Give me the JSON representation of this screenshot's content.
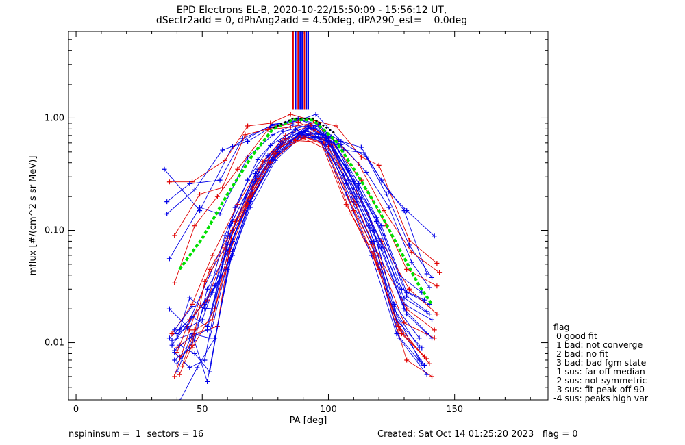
{
  "header": {
    "title_line1": "EPD Electrons EL-B, 2020-10-22/15:50:09 - 15:56:12 UT,",
    "title_line2": "dSectr2add = 0, dPhAng2add = 4.50deg, dPA290_est=    0.0deg"
  },
  "footer": {
    "left": "nspininsum =  1  sectors = 16",
    "right": "Created: Sat Oct 14 01:25:20 2023   flag = 0"
  },
  "flag_legend": {
    "title": "flag",
    "items": [
      " 0 good fit",
      " 1 bad: not converge",
      " 2 bad: no fit",
      " 3 bad: bad fgm state",
      "-1 sus: far off median",
      "-2 sus: not symmetric",
      "-3 sus: fit peak off 90",
      "-4 sus: peaks high var"
    ]
  },
  "colors": {
    "red": "#e00000",
    "blue": "#0000e8",
    "green": "#00e000",
    "black": "#000000"
  },
  "chart_data": {
    "type": "line",
    "xlabel": "PA [deg]",
    "ylabel": "mflux [#/(cm^2 s sr MeV)]",
    "xlim": [
      -3,
      187
    ],
    "ylim": [
      0.0031,
      5.9
    ],
    "ylog": true,
    "xticks": [
      0,
      50,
      100,
      150
    ],
    "xtick_labels": [
      "0",
      "50",
      "100",
      "150"
    ],
    "yticks": [
      0.01,
      0.1,
      1.0
    ],
    "ytick_labels": [
      "0.01",
      "0.10",
      "1.00"
    ],
    "grid": false,
    "vertical_lines_x": [
      86.0,
      87.0,
      88.0,
      88.8,
      89.6,
      90.5,
      91.3,
      92.0
    ],
    "vertical_lines_color": [
      "red",
      "blue",
      "red",
      "blue",
      "blue",
      "red",
      "blue",
      "blue"
    ],
    "vertical_lines_ymin": 1.2,
    "fit_curve_green": {
      "x": [
        41,
        50,
        60,
        70,
        78,
        86,
        94,
        103,
        112,
        120,
        129,
        136,
        141
      ],
      "y": [
        0.045,
        0.085,
        0.21,
        0.47,
        0.8,
        0.97,
        0.96,
        0.62,
        0.3,
        0.15,
        0.063,
        0.032,
        0.022
      ]
    },
    "fit_curve_black": {
      "x": [
        78,
        86,
        94,
        103
      ],
      "y": [
        0.82,
        0.99,
        0.99,
        0.72
      ]
    },
    "series": [
      {
        "color": "blue",
        "x": [
          35,
          49,
          62,
          78,
          88,
          95,
          105,
          113,
          121,
          130,
          139
        ],
        "y": [
          0.35,
          0.15,
          0.56,
          0.88,
          0.95,
          1.08,
          0.62,
          0.55,
          0.28,
          0.15,
          0.041
        ]
      },
      {
        "color": "red",
        "x": [
          37,
          46,
          59,
          68,
          77,
          85,
          94,
          103,
          113,
          120,
          132,
          143
        ],
        "y": [
          0.27,
          0.27,
          0.42,
          0.85,
          0.9,
          1.08,
          0.95,
          0.85,
          0.45,
          0.38,
          0.082,
          0.051
        ]
      },
      {
        "color": "blue",
        "x": [
          36,
          45,
          57,
          66,
          78,
          88,
          96,
          106,
          114,
          124,
          131,
          142
        ],
        "y": [
          0.18,
          0.26,
          0.28,
          0.66,
          0.86,
          0.98,
          0.88,
          0.52,
          0.49,
          0.22,
          0.15,
          0.089
        ]
      },
      {
        "color": "blue",
        "x": [
          36,
          47,
          58,
          68,
          77,
          89,
          95,
          104,
          115,
          123,
          132,
          141
        ],
        "y": [
          0.14,
          0.23,
          0.52,
          0.62,
          0.82,
          0.96,
          0.85,
          0.64,
          0.45,
          0.21,
          0.074,
          0.038
        ]
      },
      {
        "color": "red",
        "x": [
          39,
          49,
          58,
          67,
          79,
          88,
          94,
          103,
          112,
          122,
          133,
          144
        ],
        "y": [
          0.09,
          0.21,
          0.24,
          0.71,
          0.83,
          0.92,
          0.79,
          0.63,
          0.39,
          0.15,
          0.064,
          0.042
        ]
      },
      {
        "color": "blue",
        "x": [
          37,
          49,
          57,
          68,
          78,
          86,
          95,
          105,
          115,
          124,
          133,
          140
        ],
        "y": [
          0.056,
          0.16,
          0.14,
          0.45,
          0.71,
          0.87,
          0.8,
          0.58,
          0.33,
          0.16,
          0.052,
          0.031
        ]
      },
      {
        "color": "red",
        "x": [
          39,
          47,
          56,
          64,
          76,
          85,
          95,
          103,
          113,
          123,
          131,
          143
        ],
        "y": [
          0.034,
          0.11,
          0.2,
          0.35,
          0.79,
          0.83,
          0.91,
          0.55,
          0.28,
          0.11,
          0.045,
          0.032
        ]
      },
      {
        "color": "blue",
        "x": [
          37,
          44,
          55,
          63,
          72,
          82,
          93,
          101,
          112,
          121,
          131,
          140
        ],
        "y": [
          0.02,
          0.014,
          0.032,
          0.16,
          0.43,
          0.76,
          0.87,
          0.68,
          0.26,
          0.11,
          0.028,
          0.022
        ]
      },
      {
        "color": "blue",
        "x": [
          37,
          45,
          53,
          62,
          72,
          81,
          92,
          102,
          112,
          122,
          131,
          139
        ],
        "y": [
          0.011,
          0.016,
          0.04,
          0.12,
          0.35,
          0.62,
          0.81,
          0.61,
          0.24,
          0.09,
          0.026,
          0.019
        ]
      },
      {
        "color": "red",
        "x": [
          38,
          46,
          54,
          64,
          74,
          83,
          93,
          101,
          111,
          121,
          132,
          143
        ],
        "y": [
          0.012,
          0.022,
          0.06,
          0.17,
          0.41,
          0.7,
          0.86,
          0.57,
          0.22,
          0.08,
          0.03,
          0.018
        ]
      },
      {
        "color": "blue",
        "x": [
          38,
          46,
          53,
          62,
          72,
          83,
          94,
          103,
          113,
          122,
          130,
          141
        ],
        "y": [
          0.0105,
          0.012,
          0.011,
          0.08,
          0.3,
          0.66,
          0.83,
          0.58,
          0.19,
          0.07,
          0.022,
          0.016
        ]
      },
      {
        "color": "blue",
        "x": [
          39,
          46,
          54,
          61,
          70,
          80,
          90,
          100,
          110,
          120,
          130,
          140
        ],
        "y": [
          0.013,
          0.021,
          0.02,
          0.07,
          0.25,
          0.53,
          0.74,
          0.62,
          0.24,
          0.085,
          0.025,
          0.018
        ]
      },
      {
        "color": "red",
        "x": [
          40,
          47,
          56,
          62,
          72,
          82,
          92,
          100,
          110,
          120,
          131,
          142
        ],
        "y": [
          0.009,
          0.012,
          0.014,
          0.1,
          0.29,
          0.6,
          0.7,
          0.63,
          0.18,
          0.06,
          0.02,
          0.013
        ]
      },
      {
        "color": "blue",
        "x": [
          38,
          47,
          54,
          62,
          70,
          80,
          91,
          99,
          110,
          119,
          129,
          138
        ],
        "y": [
          0.0095,
          0.018,
          0.028,
          0.06,
          0.2,
          0.48,
          0.76,
          0.7,
          0.27,
          0.12,
          0.03,
          0.024
        ]
      },
      {
        "color": "blue",
        "x": [
          39,
          45,
          52,
          61,
          71,
          81,
          92,
          101,
          111,
          121,
          131,
          139
        ],
        "y": [
          0.0085,
          0.011,
          0.013,
          0.09,
          0.32,
          0.58,
          0.85,
          0.6,
          0.2,
          0.07,
          0.018,
          0.012
        ]
      },
      {
        "color": "red",
        "x": [
          41,
          46,
          55,
          63,
          73,
          83,
          93,
          101,
          111,
          121,
          130,
          142
        ],
        "y": [
          0.0075,
          0.009,
          0.02,
          0.12,
          0.36,
          0.65,
          0.72,
          0.58,
          0.17,
          0.05,
          0.015,
          0.011
        ]
      },
      {
        "color": "blue",
        "x": [
          39,
          45,
          51,
          60,
          69,
          79,
          90,
          100,
          109,
          119,
          128,
          137
        ],
        "y": [
          0.007,
          0.009,
          0.022,
          0.05,
          0.18,
          0.45,
          0.71,
          0.66,
          0.3,
          0.13,
          0.04,
          0.028
        ]
      },
      {
        "color": "blue",
        "x": [
          40,
          47,
          52,
          60,
          71,
          80,
          91,
          99,
          109,
          120,
          130,
          141
        ],
        "y": [
          0.0065,
          0.0105,
          0.03,
          0.065,
          0.27,
          0.5,
          0.78,
          0.63,
          0.22,
          0.075,
          0.02,
          0.011
        ]
      },
      {
        "color": "red",
        "x": [
          39,
          45,
          53,
          60,
          70,
          81,
          91,
          100,
          110,
          120,
          131,
          141
        ],
        "y": [
          0.005,
          0.013,
          0.045,
          0.085,
          0.24,
          0.56,
          0.67,
          0.56,
          0.15,
          0.045,
          0.007,
          0.005
        ]
      },
      {
        "color": "blue",
        "x": [
          40,
          46,
          52,
          61,
          70,
          79,
          89,
          98,
          108,
          118,
          127,
          136
        ],
        "y": [
          0.0055,
          0.012,
          0.0045,
          0.055,
          0.22,
          0.5,
          0.73,
          0.71,
          0.34,
          0.1,
          0.018,
          0.007
        ]
      },
      {
        "color": "blue",
        "x": [
          41,
          47,
          53,
          60,
          69,
          79,
          89,
          99,
          108,
          118,
          127,
          138
        ],
        "y": [
          0.0095,
          0.008,
          0.0055,
          0.045,
          0.16,
          0.42,
          0.68,
          0.67,
          0.28,
          0.08,
          0.015,
          0.0063
        ]
      },
      {
        "color": "red",
        "x": [
          41,
          46,
          51,
          59,
          70,
          79,
          90,
          99,
          109,
          119,
          129,
          138
        ],
        "y": [
          0.0052,
          0.0095,
          0.035,
          0.07,
          0.21,
          0.48,
          0.66,
          0.53,
          0.14,
          0.05,
          0.012,
          0.0075
        ]
      },
      {
        "color": "blue",
        "x": [
          39,
          45,
          51,
          61,
          71,
          80,
          90,
          99,
          109,
          118,
          128,
          139
        ],
        "y": [
          0.0082,
          0.006,
          0.007,
          0.11,
          0.3,
          0.55,
          0.75,
          0.58,
          0.19,
          0.065,
          0.011,
          0.0052
        ]
      },
      {
        "color": "blue",
        "x": [
          40,
          44,
          50,
          58,
          67,
          78,
          88,
          97,
          107,
          116,
          126,
          136
        ],
        "y": [
          0.012,
          0.0135,
          0.016,
          0.05,
          0.15,
          0.44,
          0.7,
          0.73,
          0.36,
          0.14,
          0.022,
          0.011
        ]
      },
      {
        "color": "red",
        "x": [
          40,
          45,
          52,
          60,
          69,
          78,
          89,
          98,
          108,
          117,
          128,
          140
        ],
        "y": [
          0.0082,
          0.016,
          0.024,
          0.075,
          0.2,
          0.5,
          0.7,
          0.6,
          0.19,
          0.075,
          0.014,
          0.0065
        ]
      },
      {
        "color": "blue",
        "x": [
          40,
          45,
          51,
          59,
          68,
          77,
          87,
          97,
          107,
          117,
          127,
          137
        ],
        "y": [
          0.011,
          0.025,
          0.02,
          0.09,
          0.28,
          0.57,
          0.79,
          0.64,
          0.26,
          0.08,
          0.016,
          0.009
        ]
      },
      {
        "color": "blue",
        "x": [
          41,
          46,
          52,
          60,
          67,
          76,
          86,
          96,
          106,
          116,
          126,
          136
        ],
        "y": [
          0.013,
          0.017,
          0.014,
          0.075,
          0.19,
          0.46,
          0.74,
          0.68,
          0.31,
          0.11,
          0.02,
          0.009
        ]
      },
      {
        "color": "red",
        "x": [
          42,
          47,
          54,
          61,
          68,
          77,
          87,
          97,
          107,
          118,
          128,
          139
        ],
        "y": [
          0.0062,
          0.013,
          0.016,
          0.065,
          0.17,
          0.4,
          0.63,
          0.61,
          0.17,
          0.06,
          0.013,
          0.0072
        ]
      },
      {
        "color": "blue",
        "x": [
          41,
          48,
          55,
          62,
          69,
          78,
          88,
          97,
          107,
          117,
          127,
          137
        ],
        "y": [
          0.003,
          0.006,
          0.011,
          0.065,
          0.18,
          0.43,
          0.72,
          0.62,
          0.21,
          0.06,
          0.012,
          0.0065
        ]
      }
    ]
  }
}
